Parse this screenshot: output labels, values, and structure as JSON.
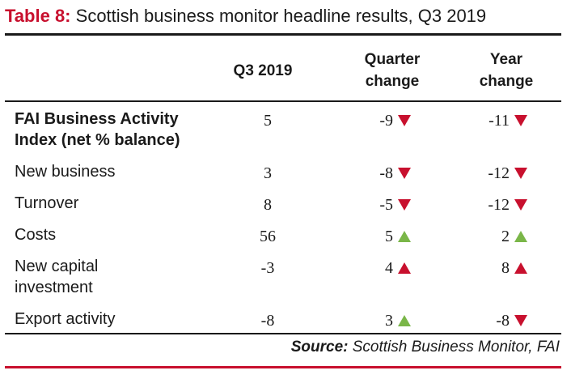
{
  "title": {
    "label": "Table 8:",
    "text": "Scottish business monitor headline results, Q3 2019"
  },
  "columns": {
    "q3": "Q3 2019",
    "quarter": [
      "Quarter",
      "change"
    ],
    "year": [
      "Year",
      "change"
    ]
  },
  "rows": [
    {
      "label": [
        "FAI Business Activity",
        "Index (net % balance)"
      ],
      "q3": "5",
      "quarter": "-9",
      "quarter_dir": "down",
      "year": "-11",
      "year_dir": "down"
    },
    {
      "label": [
        "New business"
      ],
      "q3": "3",
      "quarter": "-8",
      "quarter_dir": "down",
      "year": "-12",
      "year_dir": "down"
    },
    {
      "label": [
        "Turnover"
      ],
      "q3": "8",
      "quarter": "-5",
      "quarter_dir": "down",
      "year": "-12",
      "year_dir": "down"
    },
    {
      "label": [
        "Costs"
      ],
      "q3": "56",
      "quarter": "5",
      "quarter_dir": "up-green",
      "year": "2",
      "year_dir": "up-green"
    },
    {
      "label": [
        "New capital",
        "investment"
      ],
      "q3": "-3",
      "quarter": "4",
      "quarter_dir": "up-red",
      "year": "8",
      "year_dir": "up-red"
    },
    {
      "label": [
        "Export activity"
      ],
      "q3": "-8",
      "quarter": "3",
      "quarter_dir": "up-green",
      "year": "-8",
      "year_dir": "down"
    }
  ],
  "source": {
    "label": "Source:",
    "text": "Scottish Business Monitor, FAI"
  },
  "colors": {
    "red": "#c8102e",
    "green": "#7ab648",
    "text": "#1a1a1a"
  }
}
